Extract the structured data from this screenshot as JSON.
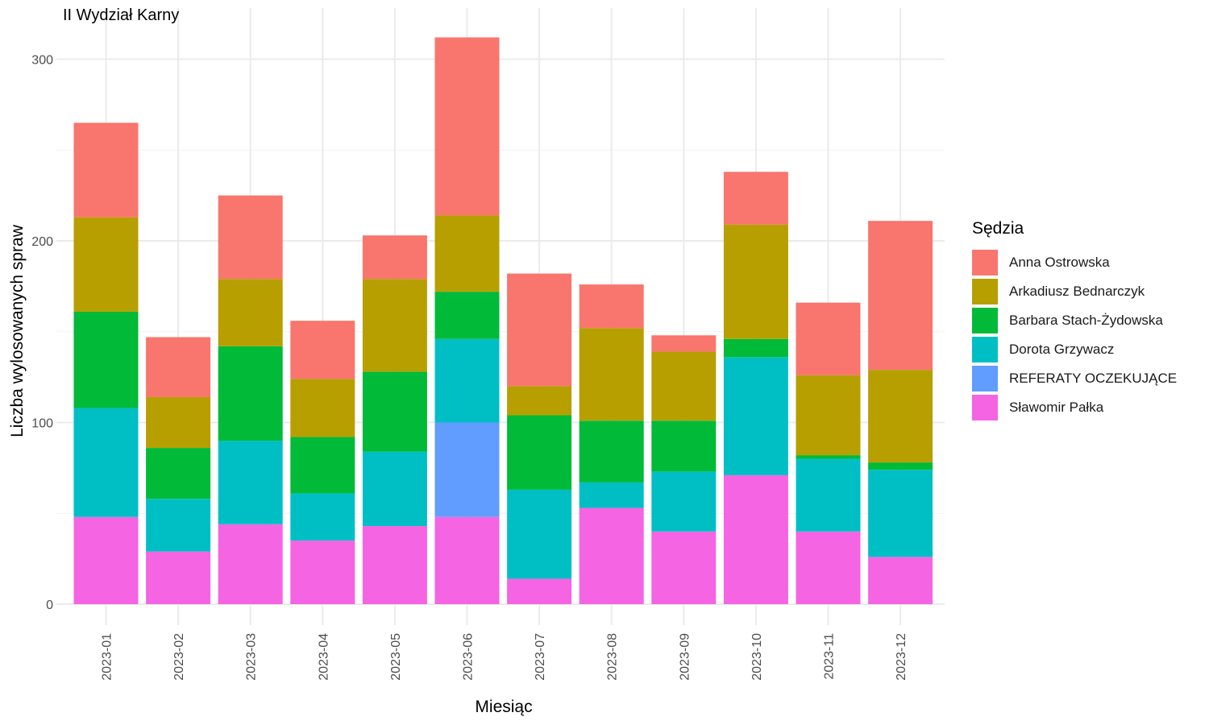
{
  "chart_data": {
    "type": "bar",
    "stacked": true,
    "title": "II Wydział Karny",
    "xlabel": "Miesiąc",
    "ylabel": "Liczba wylosowanych spraw",
    "ylim": [
      0,
      320
    ],
    "yticks": [
      0,
      100,
      200,
      300
    ],
    "grid": true,
    "legend_title": "Sędzia",
    "legend_position": "right",
    "categories": [
      "2023-01",
      "2023-02",
      "2023-03",
      "2023-04",
      "2023-05",
      "2023-06",
      "2023-07",
      "2023-08",
      "2023-09",
      "2023-10",
      "2023-11",
      "2023-12"
    ],
    "series": [
      {
        "name": "Sławomir Pałka",
        "color": "#F564E3",
        "values": [
          48,
          29,
          44,
          35,
          43,
          48,
          14,
          53,
          40,
          71,
          40,
          26
        ]
      },
      {
        "name": "REFERATY OCZEKUJĄCE",
        "color": "#619CFF",
        "values": [
          0,
          0,
          0,
          0,
          0,
          52,
          0,
          0,
          0,
          0,
          0,
          0
        ]
      },
      {
        "name": "Dorota Grzywacz",
        "color": "#00BFC4",
        "values": [
          60,
          29,
          46,
          26,
          41,
          46,
          49,
          14,
          33,
          65,
          40,
          48
        ]
      },
      {
        "name": "Barbara Stach-Żydowska",
        "color": "#00BA38",
        "values": [
          53,
          28,
          52,
          31,
          44,
          26,
          41,
          34,
          28,
          10,
          2,
          4
        ]
      },
      {
        "name": "Arkadiusz Bednarczyk",
        "color": "#B79F00",
        "values": [
          52,
          28,
          37,
          32,
          51,
          42,
          16,
          51,
          38,
          63,
          44,
          51
        ]
      },
      {
        "name": "Anna Ostrowska",
        "color": "#F8766D",
        "values": [
          52,
          33,
          46,
          32,
          24,
          98,
          62,
          24,
          9,
          29,
          40,
          82
        ]
      }
    ],
    "legend_order": [
      "Anna Ostrowska",
      "Arkadiusz Bednarczyk",
      "Barbara Stach-Żydowska",
      "Dorota Grzywacz",
      "REFERATY OCZEKUJĄCE",
      "Sławomir Pałka"
    ]
  }
}
